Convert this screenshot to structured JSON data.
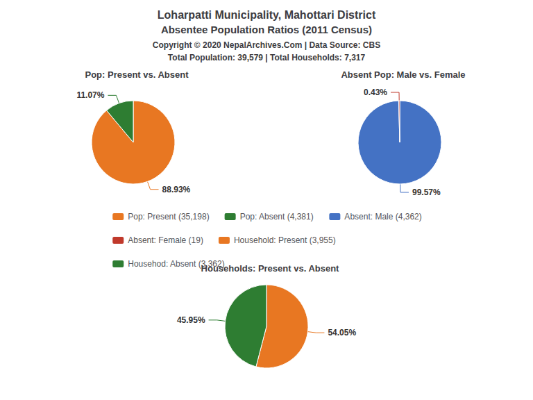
{
  "title": "Loharpatti Municipality, Mahottari District",
  "subtitle": "Absentee Population Ratios (2011 Census)",
  "annotations": [
    "Copyright © 2020 NepalArchives.Com | Data Source: CBS",
    "Total Population: 39,579 | Total Households: 7,317"
  ],
  "legend": "center",
  "chart_data": [
    {
      "type": "pie",
      "title": "Pop: Present vs. Absent",
      "categories": [
        "Pop: Present (35,198)",
        "Pop: Absent (4,381)"
      ],
      "values": [
        88.93,
        11.07
      ],
      "value_labels": [
        "88.93%",
        "11.07%"
      ],
      "colors": [
        "#E87722",
        "#2E7D32"
      ],
      "data_labels": true
    },
    {
      "type": "pie",
      "title": "Absent Pop: Male vs. Female",
      "categories": [
        "Absent: Male (4,362)",
        "Absent: Female (19)"
      ],
      "values": [
        99.57,
        0.43
      ],
      "value_labels": [
        "99.57%",
        "0.43%"
      ],
      "colors": [
        "#4472C4",
        "#C0392B"
      ],
      "data_labels": true
    },
    {
      "type": "pie",
      "title": "Households: Present vs. Absent",
      "categories": [
        "Household: Present (3,955)",
        "Househod: Absent (3,362)"
      ],
      "values": [
        54.05,
        45.95
      ],
      "value_labels": [
        "54.05%",
        "45.95%"
      ],
      "colors": [
        "#E87722",
        "#2E7D32"
      ],
      "data_labels": true
    }
  ]
}
